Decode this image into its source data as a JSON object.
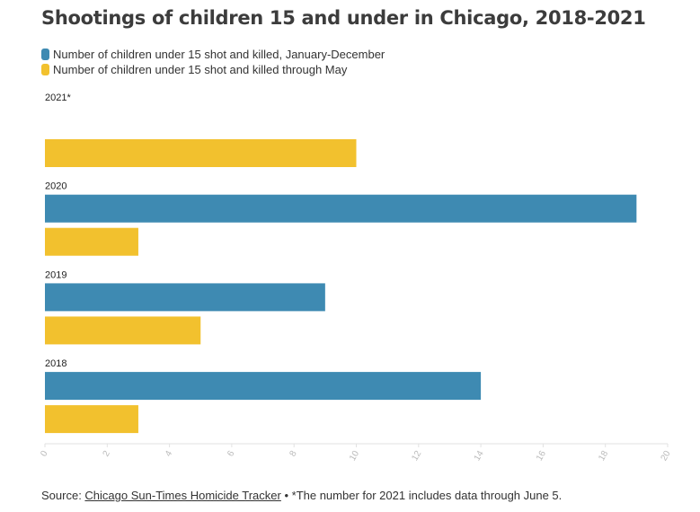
{
  "title": "Shootings of children 15 and under in Chicago, 2018-2021",
  "legend": [
    {
      "label": "Number of children under 15 shot and killed, January-December",
      "color": "#3e8ab2"
    },
    {
      "label": "Number of children under 15 shot and killed through May",
      "color": "#f2c12e"
    }
  ],
  "chart_data": {
    "type": "bar",
    "orientation": "horizontal",
    "categories": [
      "2021*",
      "2020",
      "2019",
      "2018"
    ],
    "series": [
      {
        "name": "Number of children under 15 shot and killed, January-December",
        "color": "#3e8ab2",
        "values": [
          null,
          19,
          9,
          14
        ]
      },
      {
        "name": "Number of children under 15 shot and killed through May",
        "color": "#f2c12e",
        "values": [
          10,
          3,
          5,
          3
        ]
      }
    ],
    "xlim": [
      0,
      20
    ],
    "xticks": [
      "0",
      "2",
      "4",
      "6",
      "8",
      "10",
      "12",
      "14",
      "16",
      "18",
      "20"
    ],
    "grid": false,
    "legend_position": "top-left"
  },
  "footer": {
    "source_prefix": "Source: ",
    "source_link": "Chicago Sun-Times Homicide Tracker",
    "note": " • *The number for 2021 includes data through June 5."
  }
}
